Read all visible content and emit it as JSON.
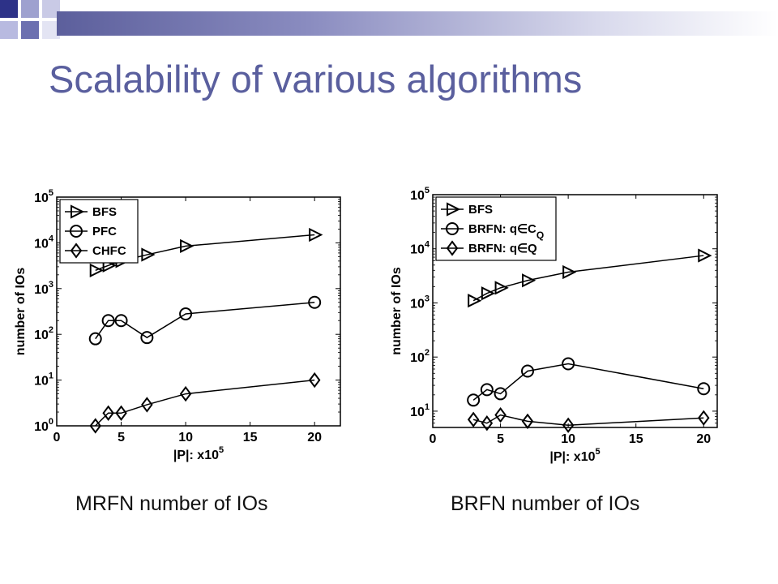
{
  "slide": {
    "title": "Scalability of various algorithms",
    "caption_left": "MRFN number of IOs",
    "caption_right": "BRFN number of IOs",
    "accent_color": "#5a5f9e"
  },
  "chart_data": [
    {
      "type": "line",
      "scale": "log-y",
      "xlabel": "|P|: x10",
      "xlabel_exp": "5",
      "ylabel": "number of IOs",
      "xlim": [
        0,
        22
      ],
      "ylim": [
        1,
        100000
      ],
      "x_ticks": [
        "0",
        "5",
        "10",
        "15",
        "20"
      ],
      "y_ticks": [
        {
          "base": "10",
          "exp": "0"
        },
        {
          "base": "10",
          "exp": "1"
        },
        {
          "base": "10",
          "exp": "2"
        },
        {
          "base": "10",
          "exp": "3"
        },
        {
          "base": "10",
          "exp": "4"
        },
        {
          "base": "10",
          "exp": "5"
        }
      ],
      "grid": false,
      "legend_position": "top-left",
      "x": [
        3,
        4,
        5,
        7,
        10,
        20
      ],
      "series": [
        {
          "name": "BFS",
          "marker": "triangle-right",
          "values": [
            2500,
            3200,
            4000,
            5500,
            8500,
            15000
          ]
        },
        {
          "name": "PFC",
          "marker": "circle",
          "values": [
            80,
            200,
            200,
            85,
            280,
            500
          ]
        },
        {
          "name": "CHFC",
          "marker": "diamond",
          "values": [
            1,
            1.9,
            1.9,
            2.9,
            5,
            10
          ]
        }
      ]
    },
    {
      "type": "line",
      "scale": "log-y",
      "xlabel": "|P|: x10",
      "xlabel_exp": "5",
      "ylabel": "number of IOs",
      "xlim": [
        0,
        21
      ],
      "ylim": [
        5,
        100000
      ],
      "x_ticks": [
        "0",
        "5",
        "10",
        "15",
        "20"
      ],
      "y_ticks": [
        {
          "base": "10",
          "exp": "1"
        },
        {
          "base": "10",
          "exp": "2"
        },
        {
          "base": "10",
          "exp": "3"
        },
        {
          "base": "10",
          "exp": "4"
        },
        {
          "base": "10",
          "exp": "5"
        }
      ],
      "grid": false,
      "legend_position": "top-left",
      "x": [
        3,
        4,
        5,
        7,
        10,
        20
      ],
      "series": [
        {
          "name": "BFS",
          "marker": "triangle-right",
          "values": [
            1100,
            1500,
            1900,
            2600,
            3700,
            7500
          ]
        },
        {
          "name": "BRFN: q∈C",
          "name_sub": "Q",
          "marker": "circle",
          "values": [
            16,
            25,
            21,
            55,
            75,
            26
          ]
        },
        {
          "name": "BRFN: q∈Q",
          "marker": "diamond",
          "values": [
            7,
            6,
            8.5,
            6.5,
            5.5,
            7.5
          ]
        }
      ]
    }
  ]
}
